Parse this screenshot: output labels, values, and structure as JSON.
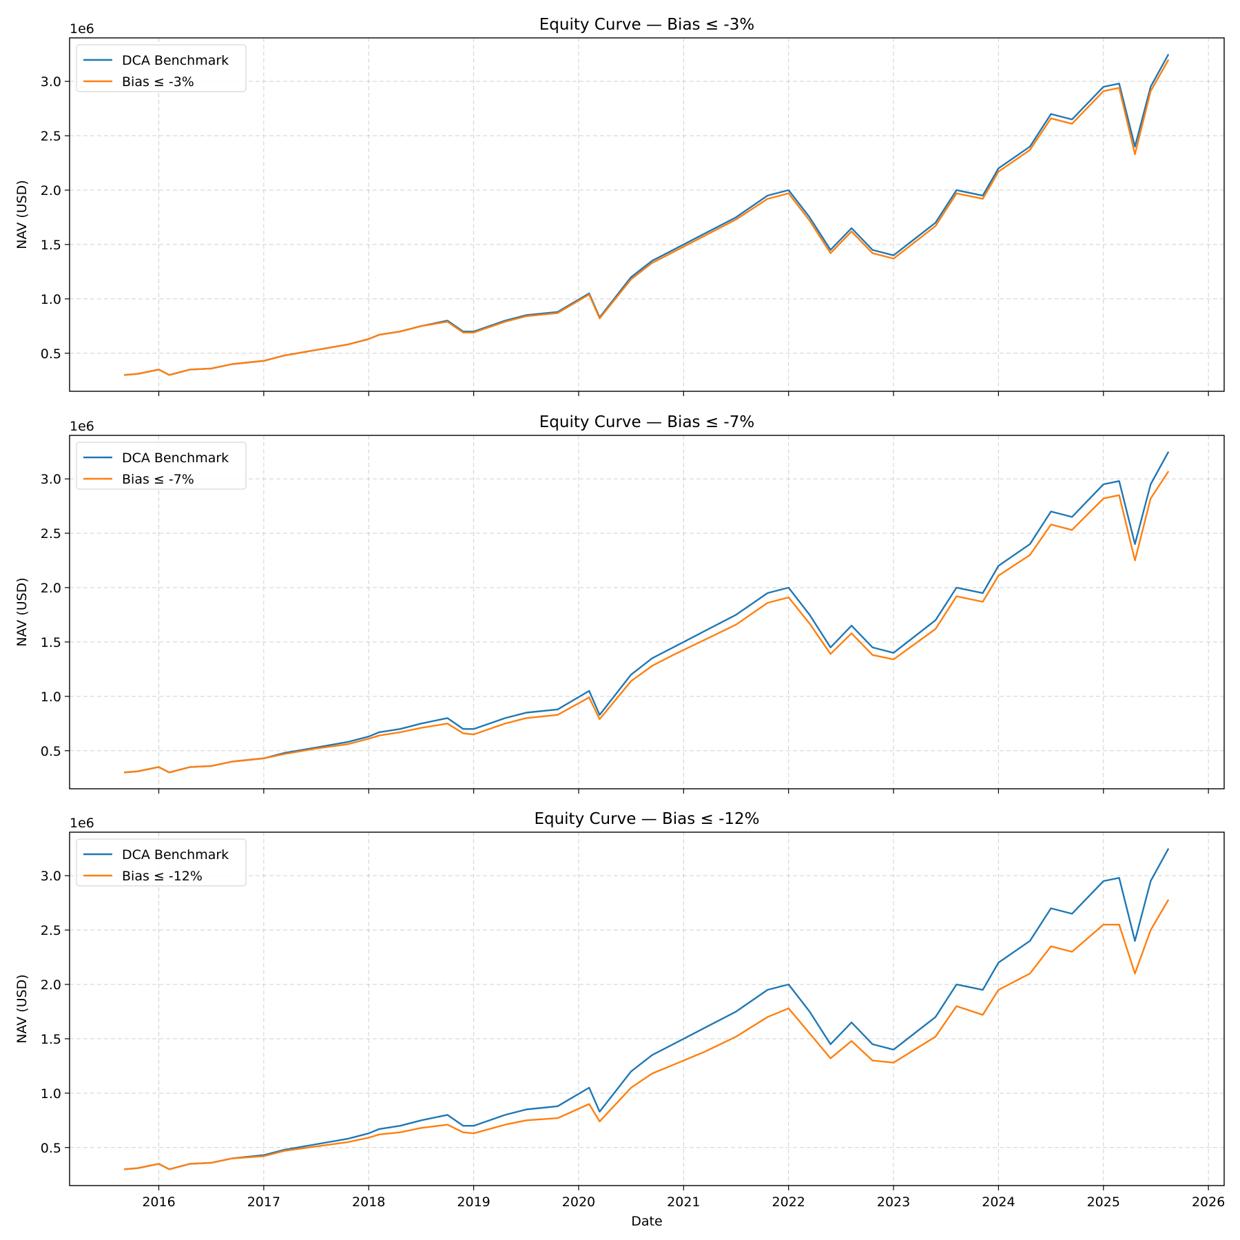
{
  "chart_data": [
    {
      "type": "line",
      "title": "Equity Curve — Bias ≤ -3%",
      "xlabel": "",
      "ylabel": "NAV (USD)",
      "y_multiplier": "1e6",
      "xlim": [
        2015.15,
        2026.15
      ],
      "ylim": [
        0.15,
        3.4
      ],
      "x_ticks": [
        "2016",
        "2017",
        "2018",
        "2019",
        "2020",
        "2021",
        "2022",
        "2023",
        "2024",
        "2025",
        "2026"
      ],
      "y_ticks": [
        "0.5",
        "1.0",
        "1.5",
        "2.0",
        "2.5",
        "3.0"
      ],
      "grid": true,
      "legend_position": "top-left",
      "x": [
        2015.67,
        2015.8,
        2016.0,
        2016.1,
        2016.3,
        2016.5,
        2016.7,
        2017.0,
        2017.2,
        2017.5,
        2017.8,
        2018.0,
        2018.1,
        2018.3,
        2018.5,
        2018.75,
        2018.9,
        2019.0,
        2019.3,
        2019.5,
        2019.8,
        2020.1,
        2020.2,
        2020.5,
        2020.7,
        2020.9,
        2021.2,
        2021.5,
        2021.8,
        2022.0,
        2022.2,
        2022.4,
        2022.6,
        2022.8,
        2023.0,
        2023.2,
        2023.4,
        2023.6,
        2023.85,
        2024.0,
        2024.3,
        2024.5,
        2024.7,
        2025.0,
        2025.15,
        2025.3,
        2025.45,
        2025.62
      ],
      "series": [
        {
          "name": "DCA Benchmark",
          "color": "#1f77b4",
          "values": [
            0.3,
            0.31,
            0.35,
            0.3,
            0.35,
            0.36,
            0.4,
            0.43,
            0.48,
            0.53,
            0.58,
            0.63,
            0.67,
            0.7,
            0.75,
            0.8,
            0.7,
            0.7,
            0.8,
            0.85,
            0.88,
            1.05,
            0.83,
            1.2,
            1.35,
            1.45,
            1.6,
            1.75,
            1.95,
            2.0,
            1.75,
            1.45,
            1.65,
            1.45,
            1.4,
            1.55,
            1.7,
            2.0,
            1.95,
            2.2,
            2.4,
            2.7,
            2.65,
            2.95,
            2.98,
            2.4,
            2.95,
            3.25
          ]
        },
        {
          "name": "Bias ≤ -3%",
          "color": "#ff7f0e",
          "values": [
            0.3,
            0.31,
            0.35,
            0.3,
            0.35,
            0.36,
            0.4,
            0.43,
            0.48,
            0.53,
            0.58,
            0.63,
            0.67,
            0.7,
            0.75,
            0.79,
            0.69,
            0.69,
            0.79,
            0.84,
            0.87,
            1.04,
            0.82,
            1.18,
            1.33,
            1.43,
            1.58,
            1.73,
            1.92,
            1.97,
            1.72,
            1.42,
            1.62,
            1.42,
            1.37,
            1.52,
            1.67,
            1.97,
            1.92,
            2.17,
            2.37,
            2.66,
            2.61,
            2.91,
            2.94,
            2.33,
            2.91,
            3.2
          ]
        }
      ]
    },
    {
      "type": "line",
      "title": "Equity Curve — Bias ≤ -7%",
      "xlabel": "",
      "ylabel": "NAV (USD)",
      "y_multiplier": "1e6",
      "xlim": [
        2015.15,
        2026.15
      ],
      "ylim": [
        0.15,
        3.4
      ],
      "x_ticks": [
        "2016",
        "2017",
        "2018",
        "2019",
        "2020",
        "2021",
        "2022",
        "2023",
        "2024",
        "2025",
        "2026"
      ],
      "y_ticks": [
        "0.5",
        "1.0",
        "1.5",
        "2.0",
        "2.5",
        "3.0"
      ],
      "grid": true,
      "legend_position": "top-left",
      "x": [
        2015.67,
        2015.8,
        2016.0,
        2016.1,
        2016.3,
        2016.5,
        2016.7,
        2017.0,
        2017.2,
        2017.5,
        2017.8,
        2018.0,
        2018.1,
        2018.3,
        2018.5,
        2018.75,
        2018.9,
        2019.0,
        2019.3,
        2019.5,
        2019.8,
        2020.1,
        2020.2,
        2020.5,
        2020.7,
        2020.9,
        2021.2,
        2021.5,
        2021.8,
        2022.0,
        2022.2,
        2022.4,
        2022.6,
        2022.8,
        2023.0,
        2023.2,
        2023.4,
        2023.6,
        2023.85,
        2024.0,
        2024.3,
        2024.5,
        2024.7,
        2025.0,
        2025.15,
        2025.3,
        2025.45,
        2025.62
      ],
      "series": [
        {
          "name": "DCA Benchmark",
          "color": "#1f77b4",
          "values": [
            0.3,
            0.31,
            0.35,
            0.3,
            0.35,
            0.36,
            0.4,
            0.43,
            0.48,
            0.53,
            0.58,
            0.63,
            0.67,
            0.7,
            0.75,
            0.8,
            0.7,
            0.7,
            0.8,
            0.85,
            0.88,
            1.05,
            0.83,
            1.2,
            1.35,
            1.45,
            1.6,
            1.75,
            1.95,
            2.0,
            1.75,
            1.45,
            1.65,
            1.45,
            1.4,
            1.55,
            1.7,
            2.0,
            1.95,
            2.2,
            2.4,
            2.7,
            2.65,
            2.95,
            2.98,
            2.4,
            2.95,
            3.25
          ]
        },
        {
          "name": "Bias ≤ -7%",
          "color": "#ff7f0e",
          "values": [
            0.3,
            0.31,
            0.35,
            0.3,
            0.35,
            0.36,
            0.4,
            0.43,
            0.47,
            0.52,
            0.56,
            0.61,
            0.64,
            0.67,
            0.71,
            0.75,
            0.66,
            0.65,
            0.75,
            0.8,
            0.83,
            0.99,
            0.79,
            1.14,
            1.28,
            1.38,
            1.52,
            1.66,
            1.86,
            1.91,
            1.67,
            1.39,
            1.58,
            1.38,
            1.34,
            1.48,
            1.62,
            1.92,
            1.87,
            2.11,
            2.3,
            2.58,
            2.53,
            2.82,
            2.85,
            2.25,
            2.82,
            3.07
          ]
        }
      ]
    },
    {
      "type": "line",
      "title": "Equity Curve — Bias ≤ -12%",
      "xlabel": "Date",
      "ylabel": "NAV (USD)",
      "y_multiplier": "1e6",
      "xlim": [
        2015.15,
        2026.15
      ],
      "ylim": [
        0.15,
        3.4
      ],
      "x_ticks": [
        "2016",
        "2017",
        "2018",
        "2019",
        "2020",
        "2021",
        "2022",
        "2023",
        "2024",
        "2025",
        "2026"
      ],
      "y_ticks": [
        "0.5",
        "1.0",
        "1.5",
        "2.0",
        "2.5",
        "3.0"
      ],
      "grid": true,
      "legend_position": "top-left",
      "x": [
        2015.67,
        2015.8,
        2016.0,
        2016.1,
        2016.3,
        2016.5,
        2016.7,
        2017.0,
        2017.2,
        2017.5,
        2017.8,
        2018.0,
        2018.1,
        2018.3,
        2018.5,
        2018.75,
        2018.9,
        2019.0,
        2019.3,
        2019.5,
        2019.8,
        2020.1,
        2020.2,
        2020.5,
        2020.7,
        2020.9,
        2021.2,
        2021.5,
        2021.8,
        2022.0,
        2022.2,
        2022.4,
        2022.6,
        2022.8,
        2023.0,
        2023.2,
        2023.4,
        2023.6,
        2023.85,
        2024.0,
        2024.3,
        2024.5,
        2024.7,
        2025.0,
        2025.15,
        2025.3,
        2025.45,
        2025.62
      ],
      "series": [
        {
          "name": "DCA Benchmark",
          "color": "#1f77b4",
          "values": [
            0.3,
            0.31,
            0.35,
            0.3,
            0.35,
            0.36,
            0.4,
            0.43,
            0.48,
            0.53,
            0.58,
            0.63,
            0.67,
            0.7,
            0.75,
            0.8,
            0.7,
            0.7,
            0.8,
            0.85,
            0.88,
            1.05,
            0.83,
            1.2,
            1.35,
            1.45,
            1.6,
            1.75,
            1.95,
            2.0,
            1.75,
            1.45,
            1.65,
            1.45,
            1.4,
            1.55,
            1.7,
            2.0,
            1.95,
            2.2,
            2.4,
            2.7,
            2.65,
            2.95,
            2.98,
            2.4,
            2.95,
            3.25
          ]
        },
        {
          "name": "Bias ≤ -12%",
          "color": "#ff7f0e",
          "values": [
            0.3,
            0.31,
            0.35,
            0.3,
            0.35,
            0.36,
            0.4,
            0.42,
            0.47,
            0.51,
            0.55,
            0.59,
            0.62,
            0.64,
            0.68,
            0.71,
            0.64,
            0.63,
            0.71,
            0.75,
            0.77,
            0.9,
            0.74,
            1.05,
            1.18,
            1.26,
            1.38,
            1.52,
            1.7,
            1.78,
            1.55,
            1.32,
            1.48,
            1.3,
            1.28,
            1.4,
            1.52,
            1.8,
            1.72,
            1.95,
            2.1,
            2.35,
            2.3,
            2.55,
            2.55,
            2.1,
            2.5,
            2.78
          ]
        }
      ]
    }
  ]
}
